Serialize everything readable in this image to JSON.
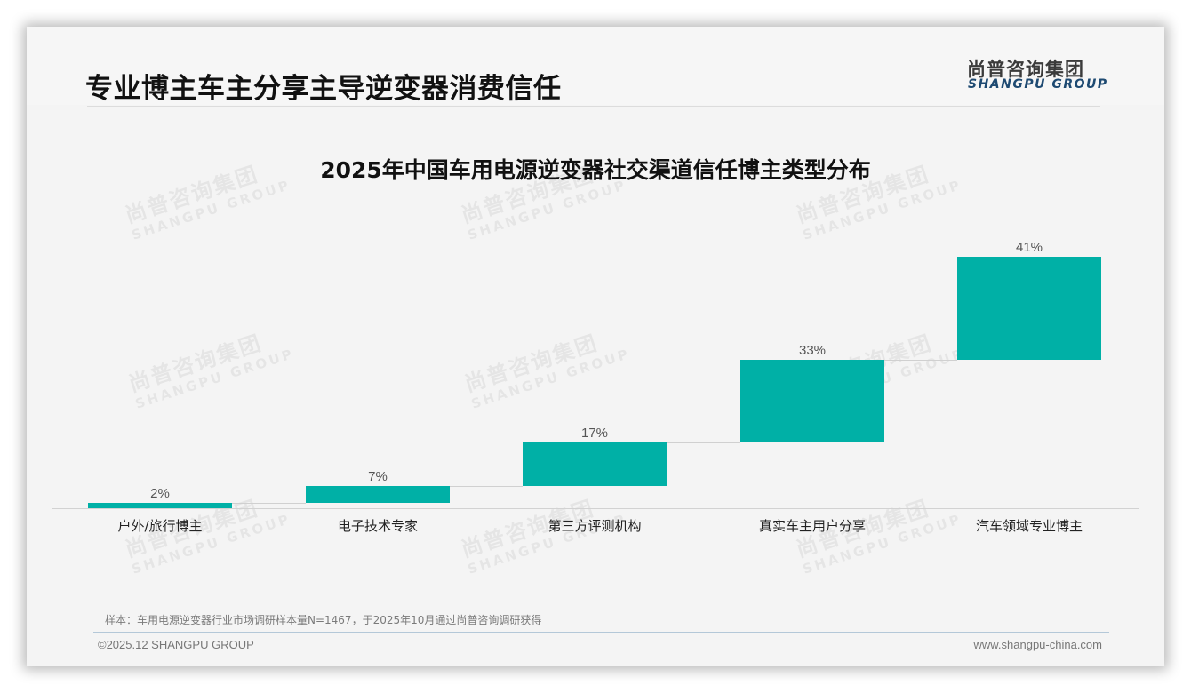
{
  "header": {
    "page_title": "专业博主车主分享主导逆变器消费信任",
    "logo_cn": "尚普咨询集团",
    "logo_en": "SHANGPU GROUP"
  },
  "watermark": {
    "cn": "尚普咨询集团",
    "en": "SHANGPU GROUP"
  },
  "colors": {
    "bar": "#00b0a6",
    "logo_en": "#1e4a72"
  },
  "chart_data": {
    "type": "bar",
    "subtype": "waterfall",
    "title": "2025年中国车用电源逆变器社交渠道信任博主类型分布",
    "categories": [
      "户外/旅行博主",
      "电子技术专家",
      "第三方评测机构",
      "真实车主用户分享",
      "汽车领域专业博主"
    ],
    "values": [
      2,
      7,
      17,
      33,
      41
    ],
    "labels": [
      "2%",
      "7%",
      "17%",
      "33%",
      "41%"
    ],
    "unit": "%",
    "xlabel": "",
    "ylabel": "",
    "ylim": [
      0,
      100
    ],
    "grid": false,
    "legend": false
  },
  "footer": {
    "sample_note": "样本：车用电源逆变器行业市场调研样本量N=1467，于2025年10月通过尚普咨询调研获得",
    "copyright": "©2025.12 SHANGPU GROUP",
    "website": "www.shangpu-china.com"
  }
}
